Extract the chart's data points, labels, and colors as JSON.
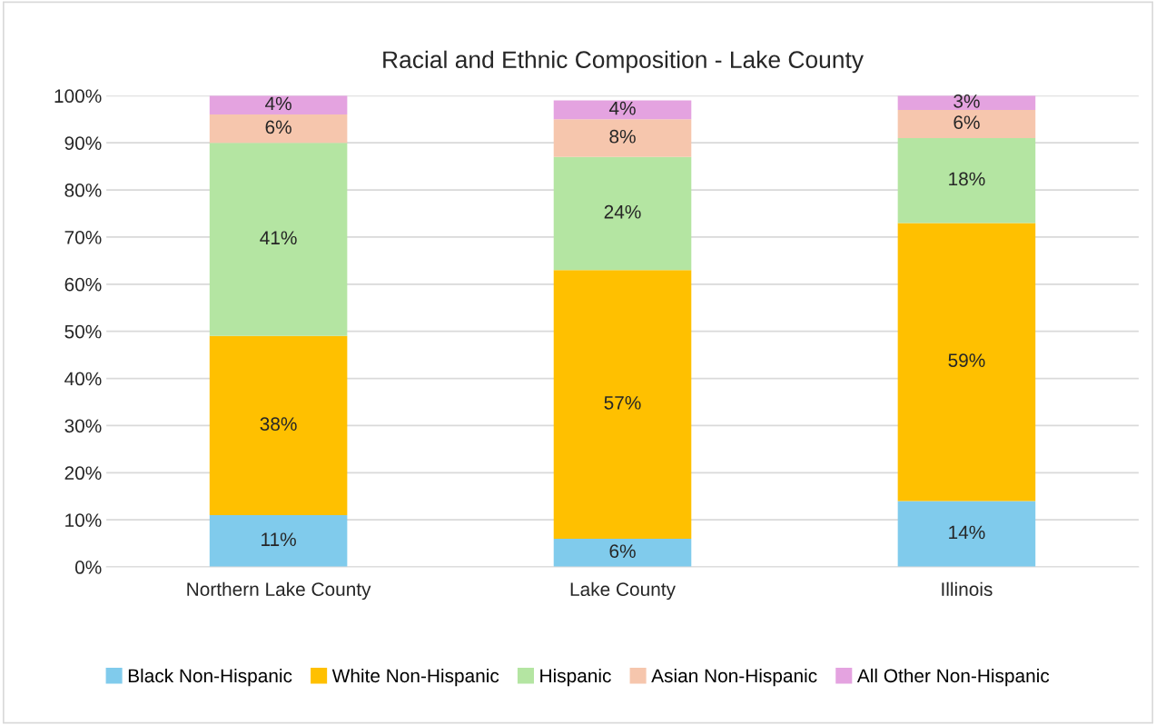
{
  "chart_data": {
    "type": "bar",
    "title": "Racial and Ethnic Composition - Lake County",
    "categories": [
      "Northern Lake County",
      "Lake County",
      "Illinois"
    ],
    "stacked": true,
    "grid": "y",
    "legend": "bottom",
    "ylim": [
      0,
      100
    ],
    "yticks": [
      {
        "value": 0,
        "label": "0%"
      },
      {
        "value": 10,
        "label": "10%"
      },
      {
        "value": 20,
        "label": "20%"
      },
      {
        "value": 30,
        "label": "30%"
      },
      {
        "value": 40,
        "label": "40%"
      },
      {
        "value": 50,
        "label": "50%"
      },
      {
        "value": 60,
        "label": "60%"
      },
      {
        "value": 70,
        "label": "70%"
      },
      {
        "value": 80,
        "label": "80%"
      },
      {
        "value": 90,
        "label": "90%"
      },
      {
        "value": 100,
        "label": "100%"
      }
    ],
    "series": [
      {
        "name": "Black Non-Hispanic",
        "color": "#80cbec",
        "values": [
          11,
          6,
          14
        ],
        "value_labels": [
          "11%",
          "6%",
          "14%"
        ]
      },
      {
        "name": "White Non-Hispanic",
        "color": "#ffc000",
        "values": [
          38,
          57,
          59
        ],
        "value_labels": [
          "38%",
          "57%",
          "59%"
        ]
      },
      {
        "name": "Hispanic",
        "color": "#b4e5a2",
        "values": [
          41,
          24,
          18
        ],
        "value_labels": [
          "41%",
          "24%",
          "18%"
        ]
      },
      {
        "name": "Asian Non-Hispanic",
        "color": "#f6c6ad",
        "values": [
          6,
          8,
          6
        ],
        "value_labels": [
          "6%",
          "8%",
          "6%"
        ]
      },
      {
        "name": "All Other Non-Hispanic",
        "color": "#e4a3e0",
        "values": [
          4,
          4,
          3
        ],
        "value_labels": [
          "4%",
          "4%",
          "3%"
        ]
      }
    ]
  }
}
